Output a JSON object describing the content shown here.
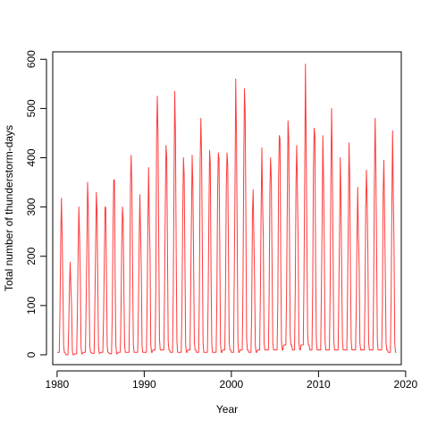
{
  "chart_data": {
    "type": "line",
    "title": "",
    "xlabel": "Year",
    "ylabel": "Total number of thunderstorm-days",
    "xlim": [
      1979.5,
      2019.5
    ],
    "ylim": [
      -20,
      615
    ],
    "xticks": [
      1980,
      1990,
      2000,
      2010,
      2020
    ],
    "yticks": [
      0,
      100,
      200,
      300,
      400,
      500,
      600
    ],
    "grid": false,
    "legend": "none",
    "frame": "box",
    "series": [
      {
        "color": "#ff3b3b",
        "resolution": "monthly",
        "start_year": 1980,
        "peaks": [
          318,
          188,
          300,
          350,
          330,
          300,
          355,
          300,
          405,
          325,
          380,
          525,
          425,
          535,
          400,
          405,
          480,
          415,
          410,
          410,
          560,
          540,
          335,
          420,
          400,
          445,
          475,
          425,
          590,
          460,
          445,
          500,
          400,
          430,
          340,
          375,
          480,
          395,
          455
        ],
        "troughs": [
          5,
          0,
          2,
          5,
          3,
          5,
          2,
          5,
          5,
          5,
          5,
          10,
          10,
          5,
          5,
          10,
          5,
          5,
          5,
          10,
          5,
          10,
          5,
          10,
          10,
          10,
          20,
          10,
          20,
          10,
          10,
          10,
          10,
          10,
          10,
          10,
          10,
          10,
          5
        ]
      }
    ]
  }
}
